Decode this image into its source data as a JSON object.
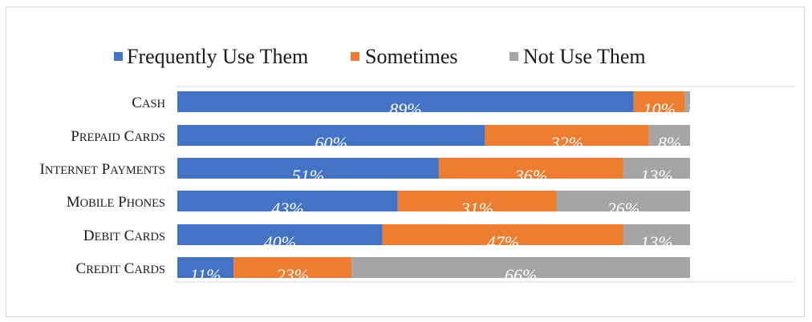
{
  "chart_data": {
    "type": "bar",
    "orientation": "horizontal",
    "stacked": true,
    "categories": [
      "Cash",
      "Prepaid cards",
      "Internet Payments",
      "Mobile phones",
      "Debit Cards",
      "Credit Cards"
    ],
    "series": [
      {
        "name": "Frequently Use Them",
        "color": "#4472c4",
        "values": [
          89,
          60,
          51,
          43,
          40,
          11
        ],
        "labels": [
          "89%",
          "60%",
          "51%",
          "43%",
          "40%",
          "11%"
        ]
      },
      {
        "name": "Sometimes",
        "color": "#ed7d31",
        "values": [
          10,
          32,
          36,
          31,
          47,
          23
        ],
        "labels": [
          "10%",
          "32%",
          "36%",
          "31%",
          "47%",
          "23%"
        ]
      },
      {
        "name": "Not Use Them",
        "color": "#a5a5a5",
        "values": [
          1,
          8,
          13,
          26,
          13,
          66
        ],
        "labels": [
          "1%",
          "8%",
          "13%",
          "26%",
          "13%",
          "66%"
        ]
      }
    ],
    "xlim": [
      0,
      100
    ],
    "legend_position": "top",
    "grid": false
  }
}
